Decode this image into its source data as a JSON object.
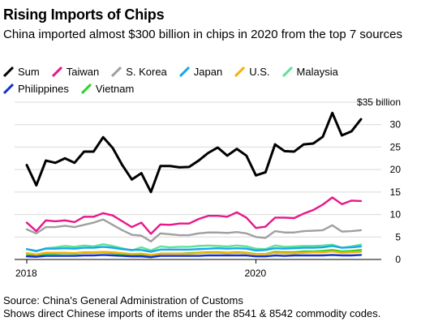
{
  "header": {
    "title": "Rising Imports of Chips",
    "subtitle": "China imported almost $300 billion in chips in 2020 from the top 7 sources"
  },
  "footer": {
    "source": "Source: China's General Administration of Customs",
    "note": "Shows direct Chinese imports of items under the 8541 & 8542 commodity codes."
  },
  "chart_data": {
    "type": "line",
    "title": "Rising Imports of Chips",
    "xlabel": "",
    "ylabel": "",
    "y_unit_label": "$35 billion",
    "ylim": [
      0,
      35
    ],
    "yticks": [
      0,
      5,
      10,
      15,
      20,
      25,
      30,
      35
    ],
    "ytick_labels": [
      "0",
      "5",
      "10",
      "15",
      "20",
      "25",
      "30",
      "$35 billion"
    ],
    "xtick_labels": [
      "2018",
      "2020"
    ],
    "xtick_positions": [
      "2018-01",
      "2020-01"
    ],
    "grid": true,
    "legend_position": "top",
    "x": [
      "2018-01",
      "2018-02",
      "2018-03",
      "2018-04",
      "2018-05",
      "2018-06",
      "2018-07",
      "2018-08",
      "2018-09",
      "2018-10",
      "2018-11",
      "2018-12",
      "2019-01",
      "2019-02",
      "2019-03",
      "2019-04",
      "2019-05",
      "2019-06",
      "2019-07",
      "2019-08",
      "2019-09",
      "2019-10",
      "2019-11",
      "2019-12",
      "2020-01",
      "2020-02",
      "2020-03",
      "2020-04",
      "2020-05",
      "2020-06",
      "2020-07",
      "2020-08",
      "2020-09",
      "2020-10",
      "2020-11",
      "2020-12"
    ],
    "series": [
      {
        "name": "Sum",
        "color": "#000000",
        "values": [
          21.0,
          16.5,
          22.0,
          21.5,
          22.5,
          21.5,
          24.0,
          24.0,
          27.2,
          24.8,
          21.0,
          17.8,
          19.2,
          15.0,
          20.8,
          20.8,
          20.5,
          20.6,
          22.0,
          23.7,
          24.9,
          23.1,
          24.6,
          23.1,
          18.7,
          19.4,
          25.6,
          24.1,
          24.0,
          25.6,
          25.8,
          27.3,
          32.6,
          27.6,
          28.5,
          31.2
        ]
      },
      {
        "name": "Taiwan",
        "color": "#e8178a",
        "values": [
          8.2,
          6.3,
          8.7,
          8.5,
          8.7,
          8.3,
          9.5,
          9.5,
          10.3,
          9.8,
          8.5,
          7.2,
          8.2,
          5.7,
          7.8,
          7.7,
          8.0,
          8.0,
          9.0,
          9.7,
          9.7,
          9.5,
          10.5,
          9.3,
          7.0,
          7.3,
          9.3,
          9.3,
          9.2,
          10.2,
          11.0,
          12.2,
          13.8,
          12.3,
          13.1,
          13.0
        ]
      },
      {
        "name": "S. Korea",
        "color": "#a0a0a0",
        "values": [
          6.7,
          5.8,
          7.2,
          7.2,
          7.5,
          7.2,
          7.7,
          8.2,
          8.9,
          7.7,
          6.5,
          5.5,
          5.3,
          4.0,
          5.8,
          5.6,
          5.4,
          5.4,
          5.8,
          6.0,
          6.0,
          5.9,
          6.1,
          5.8,
          5.0,
          4.8,
          6.3,
          6.0,
          6.0,
          6.3,
          6.4,
          6.5,
          7.6,
          6.2,
          6.3,
          6.5
        ]
      },
      {
        "name": "Japan",
        "color": "#1aa7e8",
        "values": [
          2.3,
          1.9,
          2.4,
          2.4,
          2.5,
          2.4,
          2.6,
          2.6,
          2.8,
          2.6,
          2.3,
          2.1,
          2.1,
          1.7,
          2.2,
          2.2,
          2.2,
          2.2,
          2.3,
          2.4,
          2.5,
          2.4,
          2.5,
          2.4,
          2.0,
          2.1,
          2.5,
          2.4,
          2.5,
          2.6,
          2.6,
          2.7,
          3.0,
          2.6,
          2.7,
          2.9
        ]
      },
      {
        "name": "U.S.",
        "color": "#f5b10b",
        "values": [
          1.4,
          1.1,
          1.5,
          1.5,
          1.5,
          1.4,
          1.6,
          1.6,
          1.7,
          1.6,
          1.4,
          1.2,
          1.3,
          1.0,
          1.3,
          1.3,
          1.3,
          1.3,
          1.4,
          1.5,
          1.5,
          1.4,
          1.5,
          1.4,
          1.2,
          1.2,
          1.5,
          1.4,
          1.4,
          1.5,
          1.6,
          1.6,
          1.8,
          1.5,
          1.6,
          1.7
        ]
      },
      {
        "name": "Malaysia",
        "color": "#5de29a",
        "values": [
          2.3,
          1.8,
          2.5,
          2.7,
          3.0,
          2.8,
          3.1,
          2.9,
          3.4,
          3.0,
          2.5,
          2.0,
          2.7,
          2.0,
          2.9,
          2.7,
          2.8,
          2.8,
          3.0,
          3.1,
          3.0,
          2.9,
          3.1,
          2.9,
          2.4,
          2.3,
          3.1,
          2.8,
          2.9,
          3.0,
          3.0,
          3.1,
          3.3,
          2.6,
          2.9,
          3.3
        ]
      },
      {
        "name": "Philippines",
        "color": "#1433cc",
        "values": [
          0.7,
          0.6,
          0.8,
          0.8,
          0.8,
          0.8,
          0.9,
          0.9,
          1.0,
          0.9,
          0.8,
          0.7,
          0.7,
          0.5,
          0.8,
          0.8,
          0.8,
          0.8,
          0.8,
          0.9,
          0.9,
          0.9,
          0.9,
          0.9,
          0.7,
          0.7,
          0.9,
          0.8,
          0.9,
          0.9,
          0.9,
          0.9,
          1.0,
          0.9,
          0.9,
          1.0
        ]
      },
      {
        "name": "Vietnam",
        "color": "#2bd427",
        "values": [
          1.2,
          0.9,
          1.3,
          1.3,
          1.4,
          1.3,
          1.5,
          1.5,
          1.6,
          1.4,
          1.2,
          1.0,
          1.1,
          0.8,
          1.3,
          1.3,
          1.3,
          1.4,
          1.5,
          1.6,
          1.6,
          1.5,
          1.6,
          1.5,
          1.2,
          1.2,
          1.7,
          1.6,
          1.6,
          1.8,
          1.8,
          1.9,
          2.1,
          1.8,
          1.9,
          2.1
        ]
      }
    ]
  }
}
